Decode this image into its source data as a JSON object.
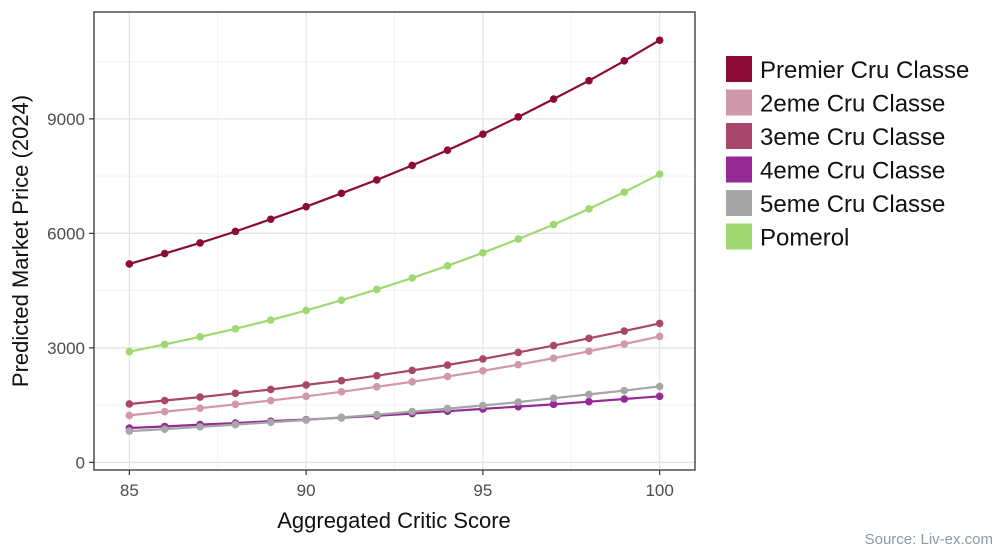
{
  "chart_data": {
    "type": "line",
    "title": "",
    "xlabel": "Aggregated Critic Score",
    "ylabel": "Predicted Market Price (2024)",
    "xlim": [
      84,
      101
    ],
    "ylim": [
      -200,
      11800
    ],
    "x_ticks": [
      85,
      90,
      95,
      100
    ],
    "y_ticks": [
      0,
      3000,
      6000,
      9000
    ],
    "grid": true,
    "legend_position": "right",
    "x": [
      85,
      86,
      87,
      88,
      89,
      90,
      91,
      92,
      93,
      94,
      95,
      96,
      97,
      98,
      99,
      100
    ],
    "series": [
      {
        "name": "Premier Cru Classe",
        "color": "#8b0a36",
        "values": [
          5200,
          5470,
          5750,
          6050,
          6370,
          6700,
          7050,
          7400,
          7780,
          8180,
          8600,
          9050,
          9520,
          10000,
          10520,
          11060
        ]
      },
      {
        "name": "2eme Cru Classe",
        "color": "#cf99ab",
        "values": [
          1230,
          1330,
          1420,
          1520,
          1620,
          1730,
          1850,
          1980,
          2110,
          2250,
          2400,
          2560,
          2730,
          2910,
          3100,
          3300
        ]
      },
      {
        "name": "3eme Cru Classe",
        "color": "#a8466b",
        "values": [
          1530,
          1620,
          1710,
          1810,
          1910,
          2030,
          2140,
          2270,
          2410,
          2550,
          2710,
          2880,
          3060,
          3250,
          3440,
          3640
        ]
      },
      {
        "name": "4eme Cru Classe",
        "color": "#962a95",
        "values": [
          900,
          940,
          990,
          1030,
          1080,
          1120,
          1170,
          1220,
          1280,
          1340,
          1400,
          1460,
          1520,
          1590,
          1660,
          1730
        ]
      },
      {
        "name": "5eme Cru Classe",
        "color": "#a6a6a6",
        "values": [
          820,
          870,
          930,
          990,
          1050,
          1110,
          1180,
          1250,
          1330,
          1410,
          1490,
          1580,
          1680,
          1780,
          1880,
          1990
        ]
      },
      {
        "name": "Pomerol",
        "color": "#9fd870",
        "values": [
          2900,
          3090,
          3290,
          3500,
          3730,
          3980,
          4250,
          4530,
          4830,
          5150,
          5490,
          5850,
          6230,
          6640,
          7080,
          7550
        ]
      }
    ]
  },
  "source_text": "Source: Liv-ex.com"
}
